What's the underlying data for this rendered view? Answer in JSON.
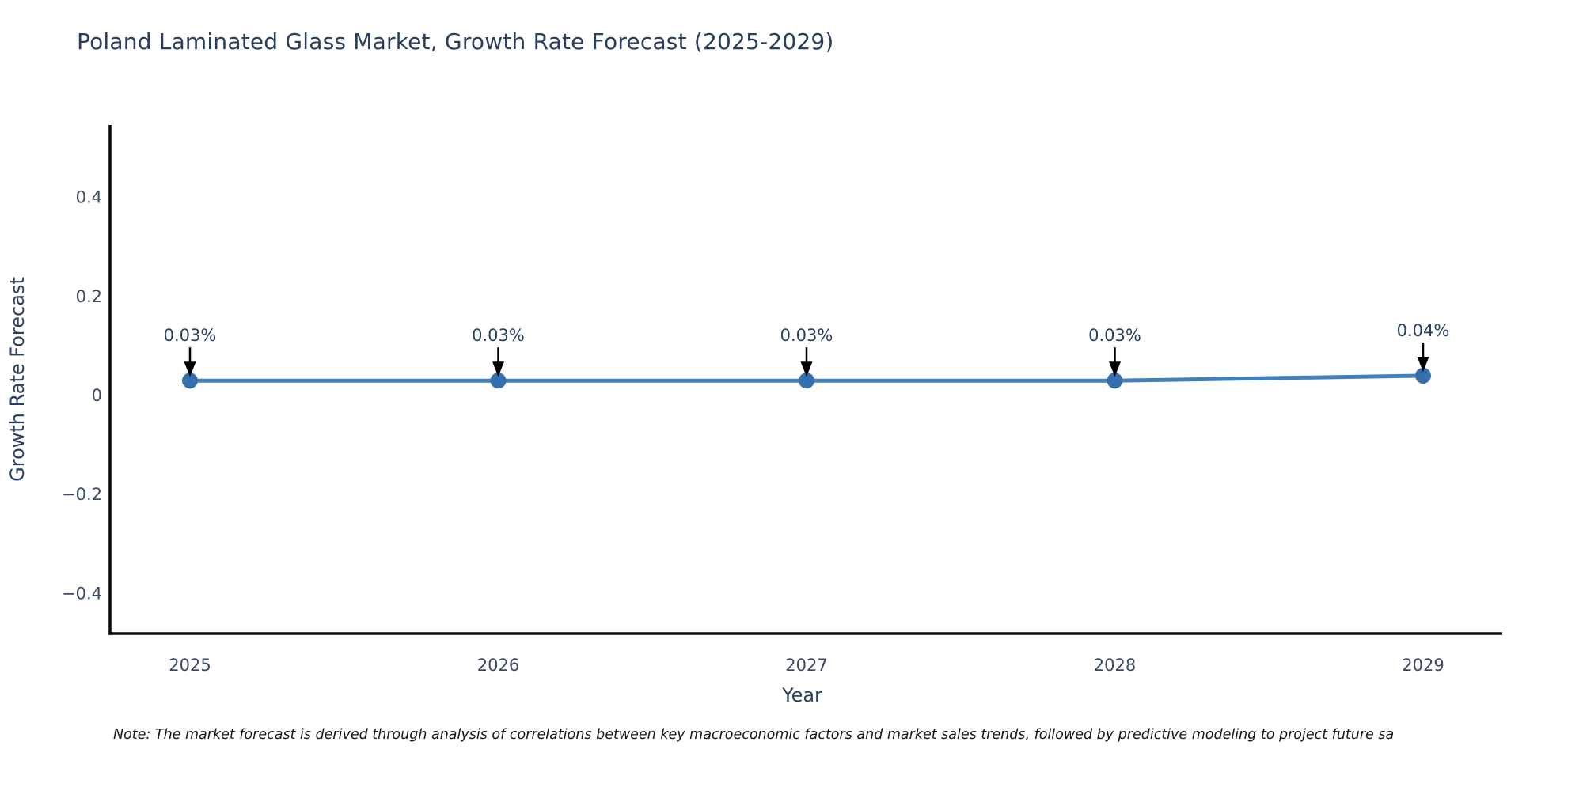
{
  "note": "Note: The market forecast is derived through analysis of correlations between key macroeconomic factors and market sales trends, followed by predictive modeling to project future sa",
  "chart_data": {
    "type": "line",
    "title": "Poland Laminated Glass Market, Growth Rate Forecast (2025-2029)",
    "xlabel": "Year",
    "ylabel": "Growth Rate Forecast",
    "x": [
      "2025",
      "2026",
      "2027",
      "2028",
      "2029"
    ],
    "series": [
      {
        "name": "Growth Rate Forecast",
        "values": [
          0.03,
          0.03,
          0.03,
          0.03,
          0.04
        ]
      }
    ],
    "point_labels": [
      "0.03%",
      "0.03%",
      "0.03%",
      "0.03%",
      "0.04%"
    ],
    "yticks": [
      0.4,
      0.2,
      0,
      -0.2,
      -0.4
    ],
    "ytick_labels": [
      "0.4",
      "0.2",
      "0",
      "−0.2",
      "−0.4"
    ],
    "ylim": [
      -0.48,
      0.545
    ],
    "grid": false,
    "legend": "none",
    "annotation_arrows": true,
    "colors": {
      "line": "#4080bb",
      "marker": "#3470ad",
      "arrow": "#000000",
      "axis": "#0a0a0a",
      "title_text": "#2a3f5f",
      "tick_text": "#3b4a63",
      "note_text": "#161616"
    }
  }
}
